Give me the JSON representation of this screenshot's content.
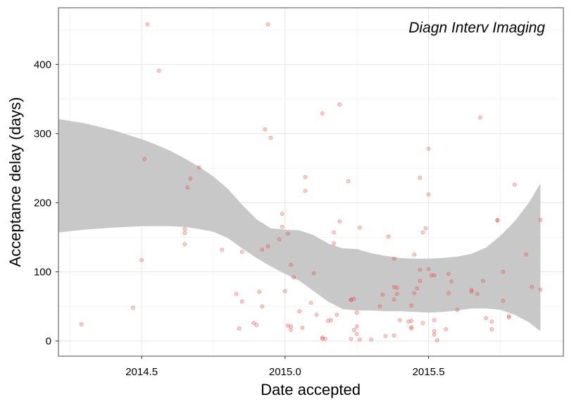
{
  "chart_data": {
    "type": "scatter",
    "annotation": "Diagn Interv Imaging",
    "xlabel": "Date accepted",
    "ylabel": "Acceptance delay (days)",
    "xlim": [
      2014.21,
      2015.97
    ],
    "ylim": [
      -22,
      482
    ],
    "x_ticks": [
      {
        "value": 2014.5,
        "label": "2014.5"
      },
      {
        "value": 2015.0,
        "label": "2015.0"
      },
      {
        "value": 2015.5,
        "label": "2015.5"
      }
    ],
    "y_ticks": [
      {
        "value": 0,
        "label": "0"
      },
      {
        "value": 100,
        "label": "100"
      },
      {
        "value": 200,
        "label": "200"
      },
      {
        "value": 300,
        "label": "300"
      },
      {
        "value": 400,
        "label": "400"
      }
    ],
    "grid": true,
    "point_color": "#e8433a",
    "band_color": "#c8c8c8",
    "points": [
      [
        2014.29,
        24
      ],
      [
        2014.47,
        48
      ],
      [
        2014.5,
        117
      ],
      [
        2014.51,
        263
      ],
      [
        2014.52,
        458
      ],
      [
        2014.56,
        391
      ],
      [
        2014.65,
        162
      ],
      [
        2014.65,
        156
      ],
      [
        2014.65,
        140
      ],
      [
        2014.66,
        222
      ],
      [
        2014.67,
        235
      ],
      [
        2014.7,
        251
      ],
      [
        2014.78,
        132
      ],
      [
        2014.83,
        68
      ],
      [
        2014.84,
        18
      ],
      [
        2014.85,
        57
      ],
      [
        2014.85,
        129
      ],
      [
        2014.89,
        26
      ],
      [
        2014.9,
        23
      ],
      [
        2014.91,
        71
      ],
      [
        2014.92,
        132
      ],
      [
        2014.92,
        50
      ],
      [
        2014.93,
        306
      ],
      [
        2014.94,
        137
      ],
      [
        2014.94,
        458
      ],
      [
        2014.95,
        294
      ],
      [
        2014.98,
        147
      ],
      [
        2014.99,
        184
      ],
      [
        2014.99,
        165
      ],
      [
        2015.0,
        72
      ],
      [
        2015.01,
        155
      ],
      [
        2015.01,
        22
      ],
      [
        2015.02,
        16
      ],
      [
        2015.02,
        21
      ],
      [
        2015.02,
        110
      ],
      [
        2015.03,
        92
      ],
      [
        2015.05,
        43
      ],
      [
        2015.06,
        19
      ],
      [
        2015.07,
        237
      ],
      [
        2015.07,
        217
      ],
      [
        2015.09,
        55
      ],
      [
        2015.1,
        98
      ],
      [
        2015.11,
        38
      ],
      [
        2015.13,
        329
      ],
      [
        2015.13,
        5
      ],
      [
        2015.13,
        3
      ],
      [
        2015.14,
        3
      ],
      [
        2015.15,
        29
      ],
      [
        2015.16,
        30
      ],
      [
        2015.17,
        157
      ],
      [
        2015.17,
        141
      ],
      [
        2015.18,
        38
      ],
      [
        2015.19,
        342
      ],
      [
        2015.19,
        173
      ],
      [
        2015.22,
        231
      ],
      [
        2015.23,
        3
      ],
      [
        2015.23,
        60
      ],
      [
        2015.23,
        59
      ],
      [
        2015.24,
        16
      ],
      [
        2015.24,
        61
      ],
      [
        2015.25,
        41
      ],
      [
        2015.25,
        10
      ],
      [
        2015.25,
        21
      ],
      [
        2015.26,
        2
      ],
      [
        2015.26,
        164
      ],
      [
        2015.3,
        2
      ],
      [
        2015.33,
        50
      ],
      [
        2015.34,
        67
      ],
      [
        2015.35,
        7
      ],
      [
        2015.36,
        151
      ],
      [
        2015.38,
        119
      ],
      [
        2015.38,
        78
      ],
      [
        2015.38,
        60
      ],
      [
        2015.38,
        8
      ],
      [
        2015.39,
        77
      ],
      [
        2015.39,
        68
      ],
      [
        2015.4,
        30
      ],
      [
        2015.43,
        28
      ],
      [
        2015.44,
        51
      ],
      [
        2015.44,
        29
      ],
      [
        2015.44,
        20
      ],
      [
        2015.44,
        18
      ],
      [
        2015.45,
        125
      ],
      [
        2015.45,
        69
      ],
      [
        2015.46,
        76
      ],
      [
        2015.47,
        236
      ],
      [
        2015.47,
        103
      ],
      [
        2015.47,
        87
      ],
      [
        2015.48,
        157
      ],
      [
        2015.48,
        26
      ],
      [
        2015.49,
        163
      ],
      [
        2015.5,
        278
      ],
      [
        2015.5,
        212
      ],
      [
        2015.5,
        104
      ],
      [
        2015.51,
        95
      ],
      [
        2015.52,
        95
      ],
      [
        2015.52,
        30
      ],
      [
        2015.52,
        14
      ],
      [
        2015.52,
        9
      ],
      [
        2015.53,
        1
      ],
      [
        2015.56,
        17
      ],
      [
        2015.57,
        97
      ],
      [
        2015.57,
        69
      ],
      [
        2015.58,
        86
      ],
      [
        2015.6,
        45
      ],
      [
        2015.65,
        74
      ],
      [
        2015.65,
        71
      ],
      [
        2015.67,
        68
      ],
      [
        2015.68,
        323
      ],
      [
        2015.69,
        87
      ],
      [
        2015.7,
        33
      ],
      [
        2015.72,
        28
      ],
      [
        2015.72,
        17
      ],
      [
        2015.74,
        175
      ],
      [
        2015.74,
        174
      ],
      [
        2015.76,
        100
      ],
      [
        2015.76,
        58
      ],
      [
        2015.78,
        36
      ],
      [
        2015.78,
        34
      ],
      [
        2015.8,
        226
      ],
      [
        2015.84,
        125
      ],
      [
        2015.86,
        78
      ],
      [
        2015.89,
        175
      ],
      [
        2015.89,
        74
      ]
    ],
    "confidence_band": {
      "x": [
        2014.21,
        2014.3,
        2014.4,
        2014.5,
        2014.55,
        2014.6,
        2014.65,
        2014.7,
        2014.75,
        2014.8,
        2014.85,
        2014.9,
        2014.95,
        2015.0,
        2015.05,
        2015.1,
        2015.15,
        2015.2,
        2015.25,
        2015.3,
        2015.35,
        2015.4,
        2015.45,
        2015.5,
        2015.55,
        2015.6,
        2015.65,
        2015.7,
        2015.75,
        2015.8,
        2015.85,
        2015.89
      ],
      "upper": [
        321,
        315,
        305,
        292,
        284,
        275,
        264,
        252,
        238,
        220,
        197,
        176,
        163,
        161,
        160,
        153,
        141,
        134,
        133,
        127,
        123,
        120,
        119,
        119,
        120,
        122,
        126,
        135,
        152,
        173,
        200,
        228
      ],
      "lower": [
        157,
        161,
        164,
        166,
        166,
        166,
        165,
        162,
        158,
        149,
        134,
        120,
        108,
        97,
        87,
        72,
        57,
        46,
        44,
        44,
        43,
        43,
        42,
        41,
        42,
        44,
        47,
        47,
        45,
        38,
        27,
        14
      ]
    }
  }
}
